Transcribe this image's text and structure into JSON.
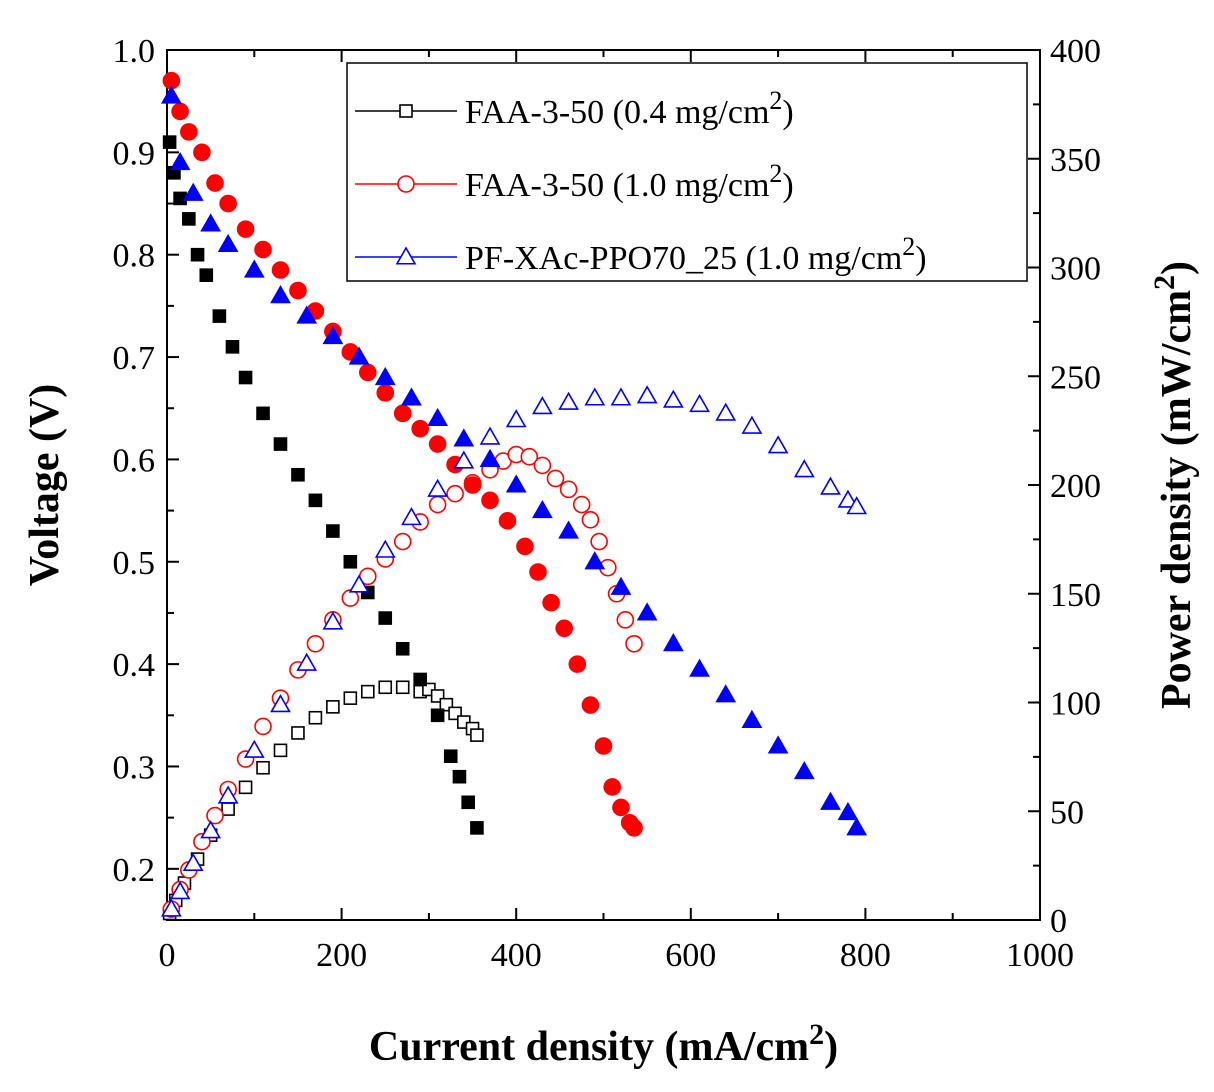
{
  "chart_data": {
    "type": "scatter",
    "title": "",
    "x_axis": {
      "label": "Current density (mA/cm",
      "label_sup": "2",
      "label_end": ")",
      "range": [
        0,
        1000
      ],
      "ticks": [
        0,
        200,
        400,
        600,
        800,
        1000
      ],
      "tick_labels": [
        "0",
        "200",
        "400",
        "600",
        "800",
        "1000"
      ]
    },
    "y_left": {
      "label": "Voltage (V)",
      "range": [
        0.15,
        1.0
      ],
      "ticks": [
        0.2,
        0.3,
        0.4,
        0.5,
        0.6,
        0.7,
        0.8,
        0.9,
        1.0
      ],
      "tick_labels": [
        "0.2",
        "0.3",
        "0.4",
        "0.5",
        "0.6",
        "0.7",
        "0.8",
        "0.9",
        "1.0"
      ]
    },
    "y_right": {
      "label": "Power density (mW/cm",
      "label_sup": "2",
      "label_end": ")",
      "range": [
        0,
        400
      ],
      "ticks": [
        0,
        50,
        100,
        150,
        200,
        250,
        300,
        350,
        400
      ],
      "tick_labels": [
        "0",
        "50",
        "100",
        "150",
        "200",
        "250",
        "300",
        "350",
        "400"
      ]
    },
    "legend": {
      "position": "top-right",
      "entries": [
        {
          "text": "FAA-3-50 (0.4 mg/cm",
          "sup": "2",
          "end": ")",
          "color": "#000000",
          "marker": "square"
        },
        {
          "text": "FAA-3-50 (1.0 mg/cm",
          "sup": "2",
          "end": ")",
          "color": "#ff0000",
          "marker": "circle"
        },
        {
          "text": "PF-XAc-PPO70_25 (1.0 mg/cm",
          "sup": "2",
          "end": ")",
          "color": "#0000ff",
          "marker": "triangle"
        }
      ]
    },
    "series": [
      {
        "name": "FAA-3-50 (0.4 mg/cm2)",
        "color": "#000000",
        "marker": "square",
        "voltage": [
          [
            3,
            0.91
          ],
          [
            8,
            0.88
          ],
          [
            15,
            0.855
          ],
          [
            25,
            0.835
          ],
          [
            35,
            0.8
          ],
          [
            45,
            0.78
          ],
          [
            60,
            0.74
          ],
          [
            75,
            0.71
          ],
          [
            90,
            0.68
          ],
          [
            110,
            0.645
          ],
          [
            130,
            0.615
          ],
          [
            150,
            0.585
          ],
          [
            170,
            0.56
          ],
          [
            190,
            0.53
          ],
          [
            210,
            0.5
          ],
          [
            230,
            0.47
          ],
          [
            250,
            0.445
          ],
          [
            270,
            0.415
          ],
          [
            290,
            0.385
          ],
          [
            310,
            0.35
          ],
          [
            325,
            0.31
          ],
          [
            335,
            0.29
          ],
          [
            345,
            0.265
          ],
          [
            355,
            0.24
          ]
        ],
        "power": [
          [
            3,
            3
          ],
          [
            10,
            9
          ],
          [
            20,
            17
          ],
          [
            35,
            28
          ],
          [
            50,
            39
          ],
          [
            70,
            51
          ],
          [
            90,
            61
          ],
          [
            110,
            70
          ],
          [
            130,
            78
          ],
          [
            150,
            86
          ],
          [
            170,
            93
          ],
          [
            190,
            98
          ],
          [
            210,
            102
          ],
          [
            230,
            105
          ],
          [
            250,
            107
          ],
          [
            270,
            107
          ],
          [
            290,
            105
          ],
          [
            300,
            106
          ],
          [
            310,
            103
          ],
          [
            320,
            99
          ],
          [
            330,
            95
          ],
          [
            340,
            91
          ],
          [
            350,
            88
          ],
          [
            355,
            85
          ]
        ]
      },
      {
        "name": "FAA-3-50 (1.0 mg/cm2)",
        "color": "#ff0000",
        "marker": "circle",
        "voltage": [
          [
            5,
            0.97
          ],
          [
            15,
            0.94
          ],
          [
            25,
            0.92
          ],
          [
            40,
            0.9
          ],
          [
            55,
            0.87
          ],
          [
            70,
            0.85
          ],
          [
            90,
            0.825
          ],
          [
            110,
            0.805
          ],
          [
            130,
            0.785
          ],
          [
            150,
            0.765
          ],
          [
            170,
            0.745
          ],
          [
            190,
            0.725
          ],
          [
            210,
            0.705
          ],
          [
            230,
            0.685
          ],
          [
            250,
            0.665
          ],
          [
            270,
            0.645
          ],
          [
            290,
            0.63
          ],
          [
            310,
            0.615
          ],
          [
            330,
            0.595
          ],
          [
            350,
            0.575
          ],
          [
            370,
            0.56
          ],
          [
            390,
            0.54
          ],
          [
            410,
            0.515
          ],
          [
            425,
            0.49
          ],
          [
            440,
            0.46
          ],
          [
            455,
            0.435
          ],
          [
            470,
            0.4
          ],
          [
            485,
            0.36
          ],
          [
            500,
            0.32
          ],
          [
            510,
            0.28
          ],
          [
            520,
            0.26
          ],
          [
            530,
            0.245
          ],
          [
            535,
            0.24
          ]
        ],
        "power": [
          [
            5,
            5
          ],
          [
            15,
            14
          ],
          [
            25,
            23
          ],
          [
            40,
            36
          ],
          [
            55,
            48
          ],
          [
            70,
            60
          ],
          [
            90,
            74
          ],
          [
            110,
            89
          ],
          [
            130,
            102
          ],
          [
            150,
            115
          ],
          [
            170,
            127
          ],
          [
            190,
            138
          ],
          [
            210,
            148
          ],
          [
            230,
            158
          ],
          [
            250,
            166
          ],
          [
            270,
            174
          ],
          [
            290,
            183
          ],
          [
            310,
            191
          ],
          [
            330,
            196
          ],
          [
            350,
            201
          ],
          [
            370,
            207
          ],
          [
            385,
            211
          ],
          [
            400,
            214
          ],
          [
            415,
            213
          ],
          [
            430,
            209
          ],
          [
            445,
            203
          ],
          [
            460,
            198
          ],
          [
            475,
            191
          ],
          [
            485,
            184
          ],
          [
            495,
            174
          ],
          [
            505,
            162
          ],
          [
            515,
            150
          ],
          [
            525,
            138
          ],
          [
            535,
            127
          ]
        ]
      },
      {
        "name": "PF-XAc-PPO70_25 (1.0 mg/cm2)",
        "color": "#0000ff",
        "marker": "triangle",
        "voltage": [
          [
            5,
            0.955
          ],
          [
            15,
            0.89
          ],
          [
            30,
            0.86
          ],
          [
            50,
            0.83
          ],
          [
            70,
            0.81
          ],
          [
            100,
            0.785
          ],
          [
            130,
            0.76
          ],
          [
            160,
            0.74
          ],
          [
            190,
            0.72
          ],
          [
            220,
            0.7
          ],
          [
            250,
            0.68
          ],
          [
            280,
            0.66
          ],
          [
            310,
            0.64
          ],
          [
            340,
            0.62
          ],
          [
            370,
            0.6
          ],
          [
            400,
            0.575
          ],
          [
            430,
            0.55
          ],
          [
            460,
            0.53
          ],
          [
            490,
            0.5
          ],
          [
            520,
            0.475
          ],
          [
            550,
            0.45
          ],
          [
            580,
            0.42
          ],
          [
            610,
            0.395
          ],
          [
            640,
            0.37
          ],
          [
            670,
            0.345
          ],
          [
            700,
            0.32
          ],
          [
            730,
            0.295
          ],
          [
            760,
            0.265
          ],
          [
            780,
            0.255
          ],
          [
            790,
            0.24
          ]
        ],
        "power": [
          [
            5,
            5
          ],
          [
            15,
            13
          ],
          [
            30,
            26
          ],
          [
            50,
            41
          ],
          [
            70,
            57
          ],
          [
            100,
            78
          ],
          [
            130,
            99
          ],
          [
            160,
            118
          ],
          [
            190,
            137
          ],
          [
            220,
            154
          ],
          [
            250,
            170
          ],
          [
            280,
            185
          ],
          [
            310,
            198
          ],
          [
            340,
            211
          ],
          [
            370,
            222
          ],
          [
            400,
            230
          ],
          [
            430,
            236
          ],
          [
            460,
            238
          ],
          [
            490,
            240
          ],
          [
            520,
            240
          ],
          [
            550,
            241
          ],
          [
            580,
            239
          ],
          [
            610,
            237
          ],
          [
            640,
            233
          ],
          [
            670,
            227
          ],
          [
            700,
            218
          ],
          [
            730,
            207
          ],
          [
            760,
            199
          ],
          [
            780,
            193
          ],
          [
            790,
            190
          ]
        ]
      }
    ]
  }
}
